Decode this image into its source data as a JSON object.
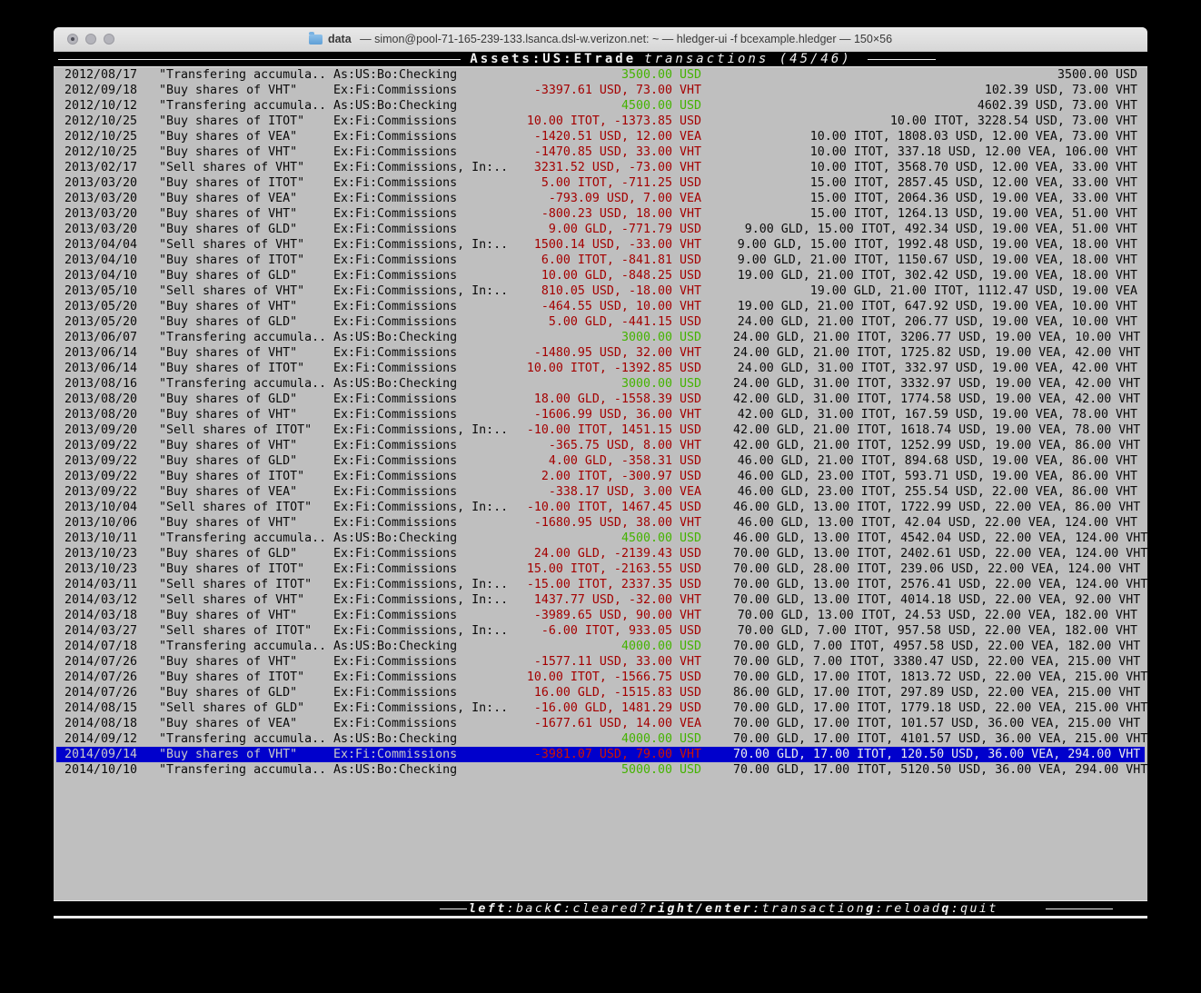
{
  "titlebar": {
    "doc": "data",
    "rest": " — simon@pool-71-165-239-133.lsanca.dsl-w.verizon.net: ~ — hledger-ui -f bcexample.hledger — 150×56"
  },
  "topbar": {
    "account": "Assets:US:ETrade",
    "suffix": "transactions (45/46)"
  },
  "footer": {
    "items": [
      {
        "key": "left",
        "desc": ":back"
      },
      {
        "key": "C",
        "desc": ":cleared?"
      },
      {
        "key": "right/enter",
        "desc": ":transaction"
      },
      {
        "key": "g",
        "desc": ":reload"
      },
      {
        "key": "q",
        "desc": ":quit"
      }
    ]
  },
  "colors": {
    "terminal_bg": "#bfbfbf",
    "bar_bg": "#000000",
    "amount_positive": "#44b300",
    "amount_negative": "#a40000",
    "selected_bg": "#0000cc",
    "selected_fg": "#c9c9c9",
    "selected_negative": "#d01400"
  },
  "rows": [
    {
      "date": "2012/08/17",
      "desc": "\"Transfering accumula..",
      "account": "As:US:Bo:Checking",
      "change": "3500.00 USD",
      "negative": false,
      "balance": "3500.00 USD",
      "selected": false
    },
    {
      "date": "2012/09/18",
      "desc": "\"Buy shares of VHT\"",
      "account": "Ex:Fi:Commissions",
      "change": "-3397.61 USD, 73.00 VHT",
      "negative": true,
      "balance": "102.39 USD, 73.00 VHT",
      "selected": false
    },
    {
      "date": "2012/10/12",
      "desc": "\"Transfering accumula..",
      "account": "As:US:Bo:Checking",
      "change": "4500.00 USD",
      "negative": false,
      "balance": "4602.39 USD, 73.00 VHT",
      "selected": false
    },
    {
      "date": "2012/10/25",
      "desc": "\"Buy shares of ITOT\"",
      "account": "Ex:Fi:Commissions",
      "change": "10.00 ITOT, -1373.85 USD",
      "negative": true,
      "balance": "10.00 ITOT, 3228.54 USD, 73.00 VHT",
      "selected": false
    },
    {
      "date": "2012/10/25",
      "desc": "\"Buy shares of VEA\"",
      "account": "Ex:Fi:Commissions",
      "change": "-1420.51 USD, 12.00 VEA",
      "negative": true,
      "balance": "10.00 ITOT, 1808.03 USD, 12.00 VEA, 73.00 VHT",
      "selected": false
    },
    {
      "date": "2012/10/25",
      "desc": "\"Buy shares of VHT\"",
      "account": "Ex:Fi:Commissions",
      "change": "-1470.85 USD, 33.00 VHT",
      "negative": true,
      "balance": "10.00 ITOT, 337.18 USD, 12.00 VEA, 106.00 VHT",
      "selected": false
    },
    {
      "date": "2013/02/17",
      "desc": "\"Sell shares of VHT\"",
      "account": "Ex:Fi:Commissions, In:..",
      "change": "3231.52 USD, -73.00 VHT",
      "negative": true,
      "balance": "10.00 ITOT, 3568.70 USD, 12.00 VEA, 33.00 VHT",
      "selected": false
    },
    {
      "date": "2013/03/20",
      "desc": "\"Buy shares of ITOT\"",
      "account": "Ex:Fi:Commissions",
      "change": "5.00 ITOT, -711.25 USD",
      "negative": true,
      "balance": "15.00 ITOT, 2857.45 USD, 12.00 VEA, 33.00 VHT",
      "selected": false
    },
    {
      "date": "2013/03/20",
      "desc": "\"Buy shares of VEA\"",
      "account": "Ex:Fi:Commissions",
      "change": "-793.09 USD, 7.00 VEA",
      "negative": true,
      "balance": "15.00 ITOT, 2064.36 USD, 19.00 VEA, 33.00 VHT",
      "selected": false
    },
    {
      "date": "2013/03/20",
      "desc": "\"Buy shares of VHT\"",
      "account": "Ex:Fi:Commissions",
      "change": "-800.23 USD, 18.00 VHT",
      "negative": true,
      "balance": "15.00 ITOT, 1264.13 USD, 19.00 VEA, 51.00 VHT",
      "selected": false
    },
    {
      "date": "2013/03/20",
      "desc": "\"Buy shares of GLD\"",
      "account": "Ex:Fi:Commissions",
      "change": "9.00 GLD, -771.79 USD",
      "negative": true,
      "balance": "9.00 GLD, 15.00 ITOT, 492.34 USD, 19.00 VEA, 51.00 VHT",
      "selected": false
    },
    {
      "date": "2013/04/04",
      "desc": "\"Sell shares of VHT\"",
      "account": "Ex:Fi:Commissions, In:..",
      "change": "1500.14 USD, -33.00 VHT",
      "negative": true,
      "balance": "9.00 GLD, 15.00 ITOT, 1992.48 USD, 19.00 VEA, 18.00 VHT",
      "selected": false
    },
    {
      "date": "2013/04/10",
      "desc": "\"Buy shares of ITOT\"",
      "account": "Ex:Fi:Commissions",
      "change": "6.00 ITOT, -841.81 USD",
      "negative": true,
      "balance": "9.00 GLD, 21.00 ITOT, 1150.67 USD, 19.00 VEA, 18.00 VHT",
      "selected": false
    },
    {
      "date": "2013/04/10",
      "desc": "\"Buy shares of GLD\"",
      "account": "Ex:Fi:Commissions",
      "change": "10.00 GLD, -848.25 USD",
      "negative": true,
      "balance": "19.00 GLD, 21.00 ITOT, 302.42 USD, 19.00 VEA, 18.00 VHT",
      "selected": false
    },
    {
      "date": "2013/05/10",
      "desc": "\"Sell shares of VHT\"",
      "account": "Ex:Fi:Commissions, In:..",
      "change": "810.05 USD, -18.00 VHT",
      "negative": true,
      "balance": "19.00 GLD, 21.00 ITOT, 1112.47 USD, 19.00 VEA",
      "selected": false
    },
    {
      "date": "2013/05/20",
      "desc": "\"Buy shares of VHT\"",
      "account": "Ex:Fi:Commissions",
      "change": "-464.55 USD, 10.00 VHT",
      "negative": true,
      "balance": "19.00 GLD, 21.00 ITOT, 647.92 USD, 19.00 VEA, 10.00 VHT",
      "selected": false
    },
    {
      "date": "2013/05/20",
      "desc": "\"Buy shares of GLD\"",
      "account": "Ex:Fi:Commissions",
      "change": "5.00 GLD, -441.15 USD",
      "negative": true,
      "balance": "24.00 GLD, 21.00 ITOT, 206.77 USD, 19.00 VEA, 10.00 VHT",
      "selected": false
    },
    {
      "date": "2013/06/07",
      "desc": "\"Transfering accumula..",
      "account": "As:US:Bo:Checking",
      "change": "3000.00 USD",
      "negative": false,
      "balance": "24.00 GLD, 21.00 ITOT, 3206.77 USD, 19.00 VEA, 10.00 VHT",
      "selected": false
    },
    {
      "date": "2013/06/14",
      "desc": "\"Buy shares of VHT\"",
      "account": "Ex:Fi:Commissions",
      "change": "-1480.95 USD, 32.00 VHT",
      "negative": true,
      "balance": "24.00 GLD, 21.00 ITOT, 1725.82 USD, 19.00 VEA, 42.00 VHT",
      "selected": false
    },
    {
      "date": "2013/06/14",
      "desc": "\"Buy shares of ITOT\"",
      "account": "Ex:Fi:Commissions",
      "change": "10.00 ITOT, -1392.85 USD",
      "negative": true,
      "balance": "24.00 GLD, 31.00 ITOT, 332.97 USD, 19.00 VEA, 42.00 VHT",
      "selected": false
    },
    {
      "date": "2013/08/16",
      "desc": "\"Transfering accumula..",
      "account": "As:US:Bo:Checking",
      "change": "3000.00 USD",
      "negative": false,
      "balance": "24.00 GLD, 31.00 ITOT, 3332.97 USD, 19.00 VEA, 42.00 VHT",
      "selected": false
    },
    {
      "date": "2013/08/20",
      "desc": "\"Buy shares of GLD\"",
      "account": "Ex:Fi:Commissions",
      "change": "18.00 GLD, -1558.39 USD",
      "negative": true,
      "balance": "42.00 GLD, 31.00 ITOT, 1774.58 USD, 19.00 VEA, 42.00 VHT",
      "selected": false
    },
    {
      "date": "2013/08/20",
      "desc": "\"Buy shares of VHT\"",
      "account": "Ex:Fi:Commissions",
      "change": "-1606.99 USD, 36.00 VHT",
      "negative": true,
      "balance": "42.00 GLD, 31.00 ITOT, 167.59 USD, 19.00 VEA, 78.00 VHT",
      "selected": false
    },
    {
      "date": "2013/09/20",
      "desc": "\"Sell shares of ITOT\"",
      "account": "Ex:Fi:Commissions, In:..",
      "change": "-10.00 ITOT, 1451.15 USD",
      "negative": true,
      "balance": "42.00 GLD, 21.00 ITOT, 1618.74 USD, 19.00 VEA, 78.00 VHT",
      "selected": false
    },
    {
      "date": "2013/09/22",
      "desc": "\"Buy shares of VHT\"",
      "account": "Ex:Fi:Commissions",
      "change": "-365.75 USD, 8.00 VHT",
      "negative": true,
      "balance": "42.00 GLD, 21.00 ITOT, 1252.99 USD, 19.00 VEA, 86.00 VHT",
      "selected": false
    },
    {
      "date": "2013/09/22",
      "desc": "\"Buy shares of GLD\"",
      "account": "Ex:Fi:Commissions",
      "change": "4.00 GLD, -358.31 USD",
      "negative": true,
      "balance": "46.00 GLD, 21.00 ITOT, 894.68 USD, 19.00 VEA, 86.00 VHT",
      "selected": false
    },
    {
      "date": "2013/09/22",
      "desc": "\"Buy shares of ITOT\"",
      "account": "Ex:Fi:Commissions",
      "change": "2.00 ITOT, -300.97 USD",
      "negative": true,
      "balance": "46.00 GLD, 23.00 ITOT, 593.71 USD, 19.00 VEA, 86.00 VHT",
      "selected": false
    },
    {
      "date": "2013/09/22",
      "desc": "\"Buy shares of VEA\"",
      "account": "Ex:Fi:Commissions",
      "change": "-338.17 USD, 3.00 VEA",
      "negative": true,
      "balance": "46.00 GLD, 23.00 ITOT, 255.54 USD, 22.00 VEA, 86.00 VHT",
      "selected": false
    },
    {
      "date": "2013/10/04",
      "desc": "\"Sell shares of ITOT\"",
      "account": "Ex:Fi:Commissions, In:..",
      "change": "-10.00 ITOT, 1467.45 USD",
      "negative": true,
      "balance": "46.00 GLD, 13.00 ITOT, 1722.99 USD, 22.00 VEA, 86.00 VHT",
      "selected": false
    },
    {
      "date": "2013/10/06",
      "desc": "\"Buy shares of VHT\"",
      "account": "Ex:Fi:Commissions",
      "change": "-1680.95 USD, 38.00 VHT",
      "negative": true,
      "balance": "46.00 GLD, 13.00 ITOT, 42.04 USD, 22.00 VEA, 124.00 VHT",
      "selected": false
    },
    {
      "date": "2013/10/11",
      "desc": "\"Transfering accumula..",
      "account": "As:US:Bo:Checking",
      "change": "4500.00 USD",
      "negative": false,
      "balance": "46.00 GLD, 13.00 ITOT, 4542.04 USD, 22.00 VEA, 124.00 VHT",
      "selected": false
    },
    {
      "date": "2013/10/23",
      "desc": "\"Buy shares of GLD\"",
      "account": "Ex:Fi:Commissions",
      "change": "24.00 GLD, -2139.43 USD",
      "negative": true,
      "balance": "70.00 GLD, 13.00 ITOT, 2402.61 USD, 22.00 VEA, 124.00 VHT",
      "selected": false
    },
    {
      "date": "2013/10/23",
      "desc": "\"Buy shares of ITOT\"",
      "account": "Ex:Fi:Commissions",
      "change": "15.00 ITOT, -2163.55 USD",
      "negative": true,
      "balance": "70.00 GLD, 28.00 ITOT, 239.06 USD, 22.00 VEA, 124.00 VHT",
      "selected": false
    },
    {
      "date": "2014/03/11",
      "desc": "\"Sell shares of ITOT\"",
      "account": "Ex:Fi:Commissions, In:..",
      "change": "-15.00 ITOT, 2337.35 USD",
      "negative": true,
      "balance": "70.00 GLD, 13.00 ITOT, 2576.41 USD, 22.00 VEA, 124.00 VHT",
      "selected": false
    },
    {
      "date": "2014/03/12",
      "desc": "\"Sell shares of VHT\"",
      "account": "Ex:Fi:Commissions, In:..",
      "change": "1437.77 USD, -32.00 VHT",
      "negative": true,
      "balance": "70.00 GLD, 13.00 ITOT, 4014.18 USD, 22.00 VEA, 92.00 VHT",
      "selected": false
    },
    {
      "date": "2014/03/18",
      "desc": "\"Buy shares of VHT\"",
      "account": "Ex:Fi:Commissions",
      "change": "-3989.65 USD, 90.00 VHT",
      "negative": true,
      "balance": "70.00 GLD, 13.00 ITOT, 24.53 USD, 22.00 VEA, 182.00 VHT",
      "selected": false
    },
    {
      "date": "2014/03/27",
      "desc": "\"Sell shares of ITOT\"",
      "account": "Ex:Fi:Commissions, In:..",
      "change": "-6.00 ITOT, 933.05 USD",
      "negative": true,
      "balance": "70.00 GLD, 7.00 ITOT, 957.58 USD, 22.00 VEA, 182.00 VHT",
      "selected": false
    },
    {
      "date": "2014/07/18",
      "desc": "\"Transfering accumula..",
      "account": "As:US:Bo:Checking",
      "change": "4000.00 USD",
      "negative": false,
      "balance": "70.00 GLD, 7.00 ITOT, 4957.58 USD, 22.00 VEA, 182.00 VHT",
      "selected": false
    },
    {
      "date": "2014/07/26",
      "desc": "\"Buy shares of VHT\"",
      "account": "Ex:Fi:Commissions",
      "change": "-1577.11 USD, 33.00 VHT",
      "negative": true,
      "balance": "70.00 GLD, 7.00 ITOT, 3380.47 USD, 22.00 VEA, 215.00 VHT",
      "selected": false
    },
    {
      "date": "2014/07/26",
      "desc": "\"Buy shares of ITOT\"",
      "account": "Ex:Fi:Commissions",
      "change": "10.00 ITOT, -1566.75 USD",
      "negative": true,
      "balance": "70.00 GLD, 17.00 ITOT, 1813.72 USD, 22.00 VEA, 215.00 VHT",
      "selected": false
    },
    {
      "date": "2014/07/26",
      "desc": "\"Buy shares of GLD\"",
      "account": "Ex:Fi:Commissions",
      "change": "16.00 GLD, -1515.83 USD",
      "negative": true,
      "balance": "86.00 GLD, 17.00 ITOT, 297.89 USD, 22.00 VEA, 215.00 VHT",
      "selected": false
    },
    {
      "date": "2014/08/15",
      "desc": "\"Sell shares of GLD\"",
      "account": "Ex:Fi:Commissions, In:..",
      "change": "-16.00 GLD, 1481.29 USD",
      "negative": true,
      "balance": "70.00 GLD, 17.00 ITOT, 1779.18 USD, 22.00 VEA, 215.00 VHT",
      "selected": false
    },
    {
      "date": "2014/08/18",
      "desc": "\"Buy shares of VEA\"",
      "account": "Ex:Fi:Commissions",
      "change": "-1677.61 USD, 14.00 VEA",
      "negative": true,
      "balance": "70.00 GLD, 17.00 ITOT, 101.57 USD, 36.00 VEA, 215.00 VHT",
      "selected": false
    },
    {
      "date": "2014/09/12",
      "desc": "\"Transfering accumula..",
      "account": "As:US:Bo:Checking",
      "change": "4000.00 USD",
      "negative": false,
      "balance": "70.00 GLD, 17.00 ITOT, 4101.57 USD, 36.00 VEA, 215.00 VHT",
      "selected": false
    },
    {
      "date": "2014/09/14",
      "desc": "\"Buy shares of VHT\"",
      "account": "Ex:Fi:Commissions",
      "change": "-3981.07 USD, 79.00 VHT",
      "negative": true,
      "balance": "70.00 GLD, 17.00 ITOT, 120.50 USD, 36.00 VEA, 294.00 VHT",
      "selected": true
    },
    {
      "date": "2014/10/10",
      "desc": "\"Transfering accumula..",
      "account": "As:US:Bo:Checking",
      "change": "5000.00 USD",
      "negative": false,
      "balance": "70.00 GLD, 17.00 ITOT, 5120.50 USD, 36.00 VEA, 294.00 VHT",
      "selected": false
    }
  ]
}
